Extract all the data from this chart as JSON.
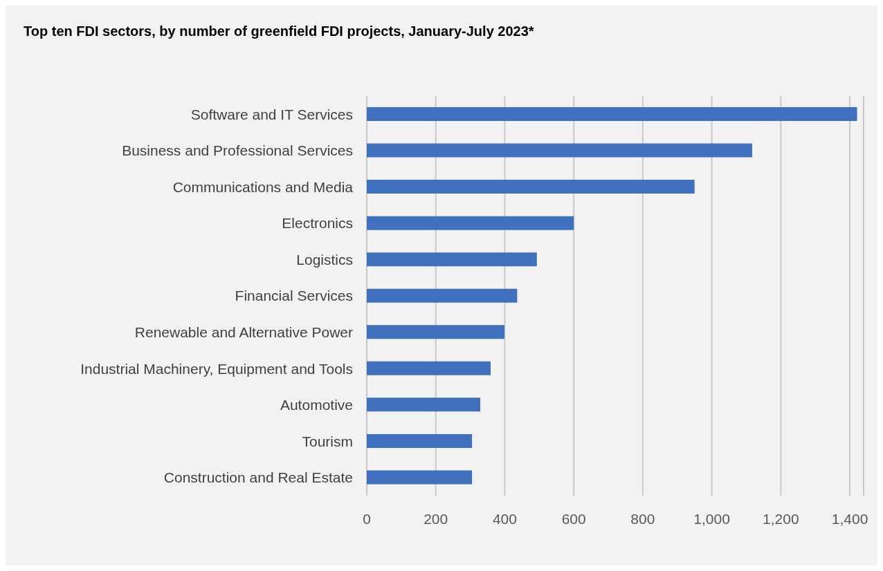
{
  "chart_data": {
    "type": "bar",
    "orientation": "horizontal",
    "title": "Top ten FDI sectors, by number of greenfield FDI projects, January-July 2023*",
    "categories": [
      "Software and IT Services",
      "Business and Professional Services",
      "Communications and Media",
      "Electronics",
      "Logistics",
      "Financial Services",
      "Renewable and Alternative Power",
      "Industrial Machinery, Equipment and Tools",
      "Automotive",
      "Tourism",
      "Construction and Real Estate"
    ],
    "values": [
      1421,
      1117,
      950,
      600,
      493,
      436,
      399,
      359,
      329,
      305,
      305
    ],
    "color": "#4170bf",
    "xlim": [
      0,
      1440
    ],
    "xticks": [
      0,
      200,
      400,
      600,
      800,
      {
        "value": 1000,
        "label": "1,000"
      },
      {
        "value": 1200,
        "label": "1,200"
      },
      {
        "value": 1400,
        "label": "1,400"
      }
    ],
    "grid": "x"
  }
}
